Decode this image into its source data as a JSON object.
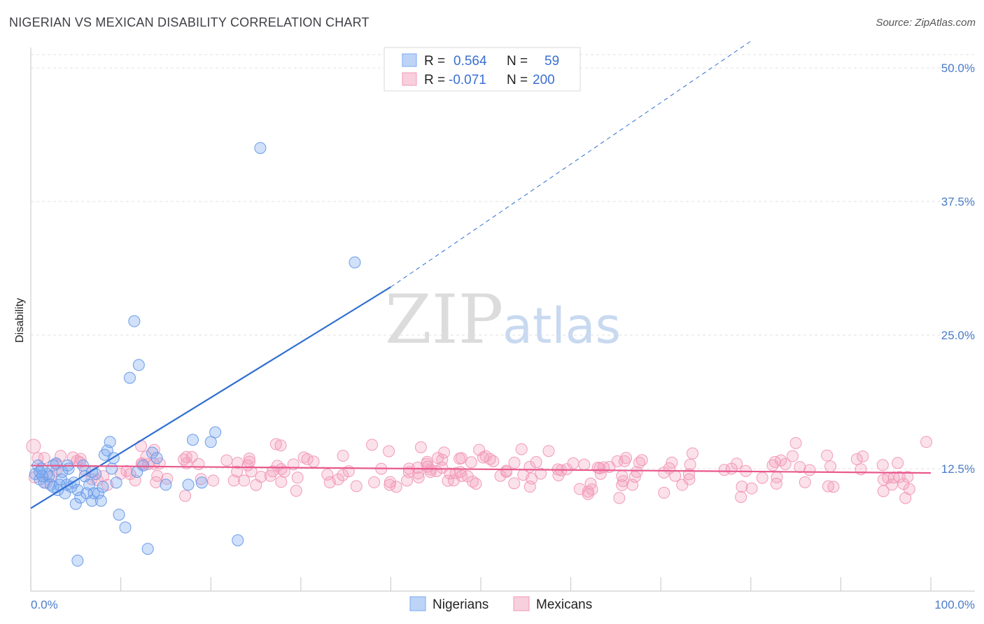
{
  "title": "NIGERIAN VS MEXICAN DISABILITY CORRELATION CHART",
  "source": "Source: ZipAtlas.com",
  "watermark": {
    "zip": "ZIP",
    "atlas": "atlas"
  },
  "colors": {
    "nigerian": "#7aaaf0",
    "nigerian_line": "#2f6fd0",
    "mexican": "#f29ab8",
    "mexican_line": "#e8588c",
    "tick_text": "#4a7cc9"
  },
  "legend": {
    "rows": [
      {
        "r_label": "R =",
        "r_value": "0.564",
        "n_label": "N =",
        "n_value": "59"
      },
      {
        "r_label": "R =",
        "r_value": "-0.071",
        "n_label": "N =",
        "n_value": "200"
      }
    ]
  },
  "chart_data": {
    "type": "scatter",
    "xlabel": "",
    "ylabel": "Disability",
    "xlim": [
      0,
      100
    ],
    "ylim": [
      0,
      50
    ],
    "x_tick_labels": [
      "0.0%",
      "100.0%"
    ],
    "y_ticks": [
      12.5,
      25.0,
      37.5,
      50.0
    ],
    "y_tick_labels": [
      "12.5%",
      "25.0%",
      "37.5%",
      "50.0%"
    ],
    "grid": true,
    "legend_position": "top-center",
    "series": [
      {
        "name": "Nigerians",
        "color": "#7aaaf0",
        "trend": {
          "x0": 0,
          "y0": 8.8,
          "x1": 40,
          "y1": 29.5,
          "dashed_to_x": 80,
          "dashed_to_y": 52.5
        },
        "points": [
          [
            0.5,
            12
          ],
          [
            0.8,
            12.8
          ],
          [
            1,
            11.5
          ],
          [
            1.2,
            12.5
          ],
          [
            1.5,
            11.2
          ],
          [
            1.8,
            12
          ],
          [
            2,
            11.8
          ],
          [
            2.2,
            11
          ],
          [
            2.5,
            10.8
          ],
          [
            2.8,
            13
          ],
          [
            3,
            10.5
          ],
          [
            3.2,
            11
          ],
          [
            3.5,
            12.2
          ],
          [
            3.8,
            10.2
          ],
          [
            4,
            11
          ],
          [
            4.2,
            12.5
          ],
          [
            4.5,
            10.8
          ],
          [
            4.8,
            11.2
          ],
          [
            5,
            9.2
          ],
          [
            5.2,
            10.5
          ],
          [
            5.5,
            9.8
          ],
          [
            5.8,
            12.8
          ],
          [
            6,
            11.8
          ],
          [
            6.2,
            10.2
          ],
          [
            6.5,
            11
          ],
          [
            6.8,
            9.5
          ],
          [
            7,
            10.2
          ],
          [
            7.2,
            12
          ],
          [
            7.5,
            10.2
          ],
          [
            7.8,
            9.5
          ],
          [
            8,
            10.8
          ],
          [
            8.2,
            13.8
          ],
          [
            8.5,
            14.2
          ],
          [
            8.8,
            15
          ],
          [
            9,
            12.5
          ],
          [
            9.2,
            13.5
          ],
          [
            9.5,
            11.2
          ],
          [
            9.8,
            8.2
          ],
          [
            10.5,
            7
          ],
          [
            11,
            21
          ],
          [
            11.5,
            26.3
          ],
          [
            12,
            22.2
          ],
          [
            12.5,
            12.8
          ],
          [
            13,
            5
          ],
          [
            13.5,
            14
          ],
          [
            14,
            13.5
          ],
          [
            15,
            11
          ],
          [
            17.5,
            11
          ],
          [
            18,
            15.2
          ],
          [
            20,
            15
          ],
          [
            20.5,
            15.9
          ],
          [
            11.8,
            12.2
          ],
          [
            5.2,
            3.9
          ],
          [
            1.3,
            11.8
          ],
          [
            1,
            12.2
          ],
          [
            2.5,
            12.8
          ],
          [
            3.4,
            11.5
          ],
          [
            4.1,
            12.8
          ],
          [
            6.8,
            12.2
          ]
        ],
        "outliers": [
          [
            23,
            5.8
          ],
          [
            25.5,
            42.5
          ],
          [
            36,
            31.8
          ],
          [
            19,
            11.2
          ]
        ]
      },
      {
        "name": "Mexicans",
        "color": "#f29ab8",
        "trend": {
          "x0": 0,
          "y0": 12.8,
          "x1": 100,
          "y1": 12.1
        }
      }
    ]
  },
  "bottom_legend": [
    {
      "label": "Nigerians",
      "color": "#7aaaf0"
    },
    {
      "label": "Mexicans",
      "color": "#f29ab8"
    }
  ]
}
